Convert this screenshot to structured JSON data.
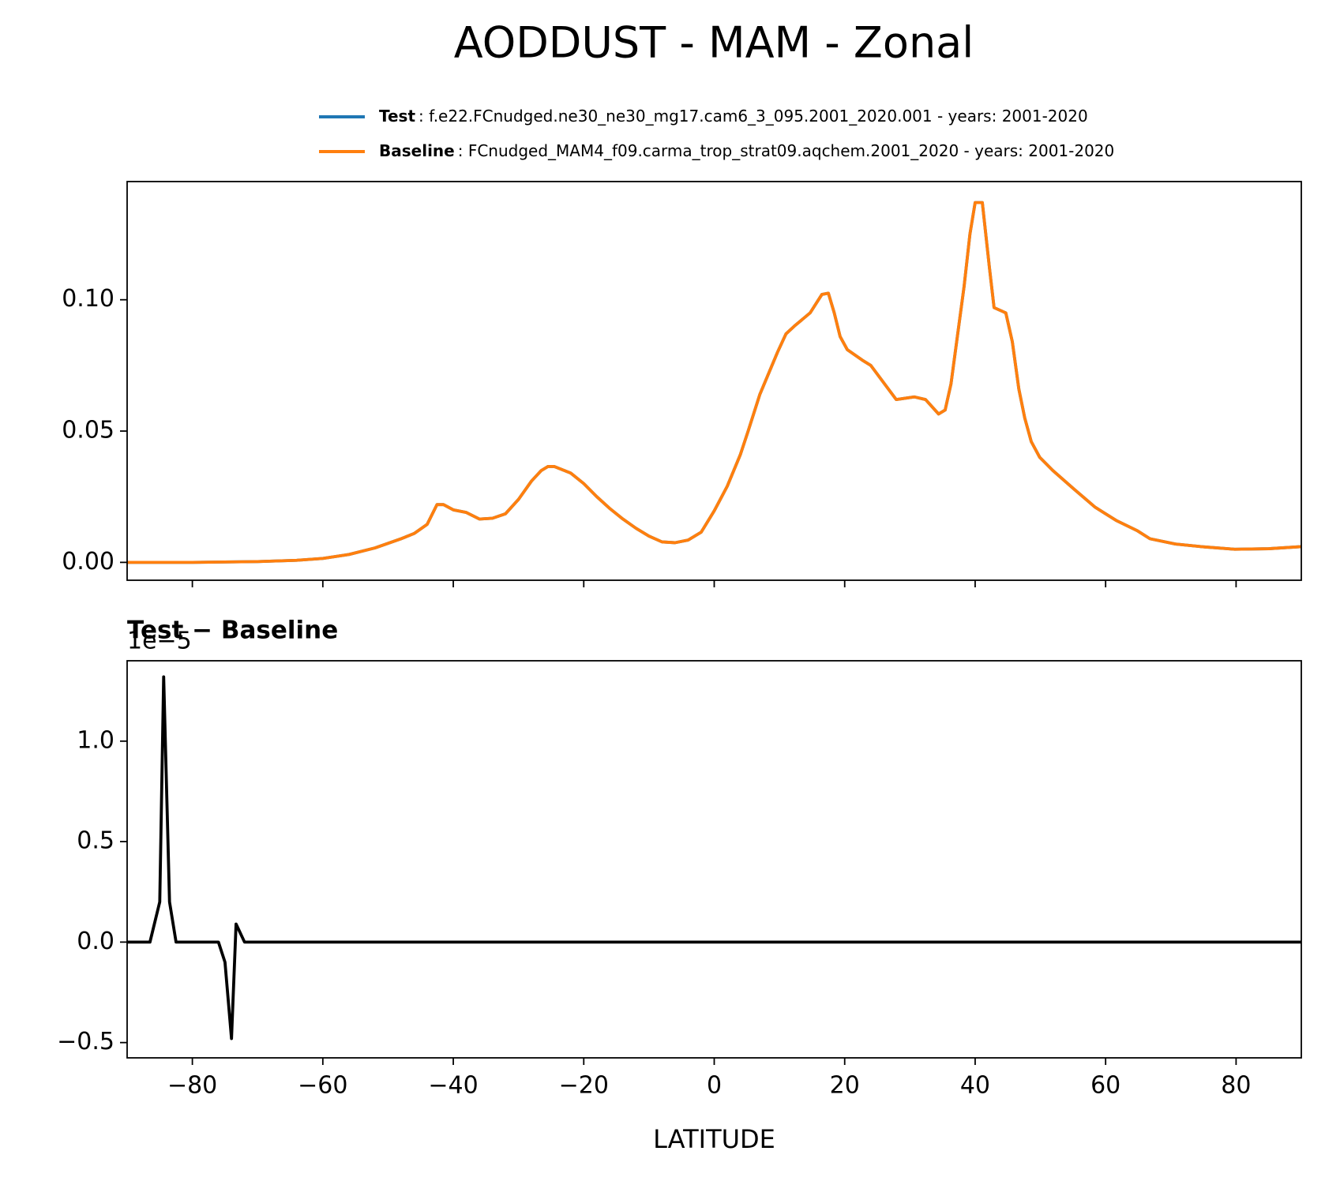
{
  "title": "AODDUST - MAM - Zonal",
  "chart_data": [
    {
      "type": "line",
      "x": [
        -90,
        -80,
        -70,
        -64,
        -60,
        -56,
        -52,
        -48,
        -46,
        -44,
        -42.5,
        -41.5,
        -40,
        -38,
        -36,
        -34,
        -32,
        -30,
        -28,
        -26.5,
        -25.5,
        -24.5,
        -22,
        -20,
        -18,
        -16,
        -14,
        -12,
        -10,
        -8,
        -6,
        -4,
        -2,
        0,
        2,
        4,
        5.2,
        7,
        9.7,
        11,
        12.3,
        14.7,
        16.5,
        17.5,
        18.4,
        19.3,
        20.4,
        22.7,
        24,
        27.9,
        30.7,
        32.4,
        34.4,
        35.4,
        36.3,
        38.3,
        39.2,
        40,
        41.1,
        42.2,
        42.9,
        44.7,
        45.7,
        46.7,
        47.6,
        48.6,
        49.9,
        51.9,
        55.1,
        58.4,
        61.6,
        64.9,
        66.8,
        70.7,
        74.6,
        79.8,
        85,
        90
      ],
      "series": [
        {
          "name": "Test",
          "description": ": f.e22.FCnudged.ne30_ne30_mg17.cam6_3_095.2001_2020.001 - years: 2001-2020",
          "color": "#1f77b4",
          "values": [
            0,
            0,
            0.0003,
            0.0008,
            0.0015,
            0.003,
            0.0055,
            0.009,
            0.011,
            0.0145,
            0.022,
            0.022,
            0.02,
            0.019,
            0.0165,
            0.0168,
            0.0185,
            0.024,
            0.031,
            0.035,
            0.0365,
            0.0365,
            0.034,
            0.03,
            0.025,
            0.0205,
            0.0165,
            0.013,
            0.01,
            0.0078,
            0.0075,
            0.0085,
            0.0115,
            0.0196,
            0.029,
            0.041,
            0.05,
            0.064,
            0.08,
            0.087,
            0.09,
            0.095,
            0.102,
            0.1025,
            0.095,
            0.086,
            0.081,
            0.077,
            0.075,
            0.062,
            0.063,
            0.062,
            0.0565,
            0.058,
            0.068,
            0.105,
            0.125,
            0.137,
            0.137,
            0.112,
            0.097,
            0.095,
            0.084,
            0.066,
            0.055,
            0.046,
            0.04,
            0.035,
            0.028,
            0.021,
            0.016,
            0.012,
            0.009,
            0.007,
            0.006,
            0.005,
            0.0052,
            0.006
          ]
        },
        {
          "name": "Baseline",
          "description": ": FCnudged_MAM4_f09.carma_trop_strat09.aqchem.2001_2020 - years: 2001-2020",
          "color": "#ff7f0e",
          "values": [
            0,
            0,
            0.0003,
            0.0008,
            0.0015,
            0.003,
            0.0055,
            0.009,
            0.011,
            0.0145,
            0.022,
            0.022,
            0.02,
            0.019,
            0.0165,
            0.0168,
            0.0185,
            0.024,
            0.031,
            0.035,
            0.0365,
            0.0365,
            0.034,
            0.03,
            0.025,
            0.0205,
            0.0165,
            0.013,
            0.01,
            0.0078,
            0.0075,
            0.0085,
            0.0115,
            0.0196,
            0.029,
            0.041,
            0.05,
            0.064,
            0.08,
            0.087,
            0.09,
            0.095,
            0.102,
            0.1025,
            0.095,
            0.086,
            0.081,
            0.077,
            0.075,
            0.062,
            0.063,
            0.062,
            0.0565,
            0.058,
            0.068,
            0.105,
            0.125,
            0.137,
            0.137,
            0.112,
            0.097,
            0.095,
            0.084,
            0.066,
            0.055,
            0.046,
            0.04,
            0.035,
            0.028,
            0.021,
            0.016,
            0.012,
            0.009,
            0.007,
            0.006,
            0.005,
            0.0052,
            0.006
          ]
        }
      ],
      "xlim": [
        -90,
        90
      ],
      "ylim": [
        -0.0068,
        0.145
      ],
      "yticks": [
        {
          "value": 0,
          "label": "0.00"
        },
        {
          "value": 0.05,
          "label": "0.05"
        },
        {
          "value": 0.1,
          "label": "0.10"
        }
      ]
    },
    {
      "type": "line",
      "title": "Test − Baseline",
      "y_offset_label": "1e−5",
      "xlabel": "LATITUDE",
      "x": [
        -90,
        -86.5,
        -85,
        -84.4,
        -83.5,
        -82.5,
        -76,
        -75,
        -74,
        -73.3,
        -72,
        90
      ],
      "series": [
        {
          "color": "#000000",
          "values": [
            0,
            0,
            0.2,
            1.32,
            0.2,
            0,
            0,
            -0.1,
            -0.48,
            0.09,
            0,
            0
          ]
        }
      ],
      "xlim": [
        -90,
        90
      ],
      "ylim": [
        -0.576,
        1.4
      ],
      "xticks": [
        {
          "value": -80,
          "label": "−80"
        },
        {
          "value": -60,
          "label": "−60"
        },
        {
          "value": -40,
          "label": "−40"
        },
        {
          "value": -20,
          "label": "−20"
        },
        0,
        20,
        40,
        60,
        80
      ],
      "yticks": [
        {
          "value": -0.5,
          "label": "−0.5"
        },
        {
          "value": 0,
          "label": "0.0"
        },
        {
          "value": 0.5,
          "label": "0.5"
        },
        {
          "value": 1,
          "label": "1.0"
        }
      ]
    }
  ]
}
